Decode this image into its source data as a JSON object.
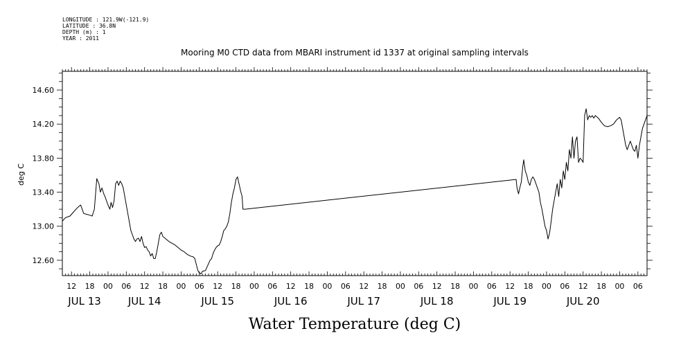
{
  "meta_lines": [
    "LONGITUDE : 121.9W(-121.9)",
    "LATITUDE : 36.8N",
    "DEPTH (m) : 1",
    "YEAR : 2011"
  ],
  "chart_data": {
    "type": "line",
    "title": "Mooring M0 CTD data from MBARI instrument id 1337 at original sampling intervals",
    "xlabel": "Water Temperature (deg C)",
    "ylabel": "deg C",
    "ylim": [
      12.42,
      14.82
    ],
    "xlim_hours": [
      9,
      201
    ],
    "y_ticks": [
      "12.60",
      "13.00",
      "13.40",
      "13.80",
      "14.20",
      "14.60"
    ],
    "x_hour_ticks": [
      "12",
      "18",
      "00",
      "06",
      "12",
      "18",
      "00",
      "06",
      "12",
      "18",
      "00",
      "06",
      "12",
      "18",
      "00",
      "06",
      "12",
      "18",
      "00",
      "06",
      "12",
      "18",
      "00",
      "06",
      "12",
      "18",
      "00",
      "06",
      "12",
      "18",
      "00",
      "06"
    ],
    "x_date_labels": [
      "JUL 13",
      "JUL 14",
      "JUL 15",
      "JUL 16",
      "JUL 17",
      "JUL 18",
      "JUL 19",
      "JUL 20"
    ],
    "grid": false,
    "series": [
      {
        "points": [
          [
            9.0,
            13.06
          ],
          [
            10.0,
            13.1
          ],
          [
            11.5,
            13.12
          ],
          [
            12.5,
            13.16
          ],
          [
            14.0,
            13.22
          ],
          [
            15.0,
            13.25
          ],
          [
            15.5,
            13.2
          ],
          [
            16.0,
            13.15
          ],
          [
            17.0,
            13.14
          ],
          [
            18.0,
            13.13
          ],
          [
            18.8,
            13.12
          ],
          [
            19.5,
            13.2
          ],
          [
            20.3,
            13.56
          ],
          [
            21.0,
            13.5
          ],
          [
            21.5,
            13.4
          ],
          [
            22.0,
            13.45
          ],
          [
            22.6,
            13.38
          ],
          [
            23.0,
            13.35
          ],
          [
            23.5,
            13.3
          ],
          [
            24.0,
            13.25
          ],
          [
            24.6,
            13.2
          ],
          [
            25.0,
            13.28
          ],
          [
            25.5,
            13.22
          ],
          [
            26.0,
            13.3
          ],
          [
            26.5,
            13.5
          ],
          [
            27.0,
            13.53
          ],
          [
            27.5,
            13.48
          ],
          [
            28.0,
            13.53
          ],
          [
            28.5,
            13.5
          ],
          [
            29.0,
            13.45
          ],
          [
            29.5,
            13.35
          ],
          [
            30.0,
            13.25
          ],
          [
            30.5,
            13.15
          ],
          [
            31.0,
            13.05
          ],
          [
            31.5,
            12.95
          ],
          [
            32.0,
            12.9
          ],
          [
            32.5,
            12.85
          ],
          [
            33.0,
            12.82
          ],
          [
            33.5,
            12.85
          ],
          [
            34.0,
            12.86
          ],
          [
            34.5,
            12.82
          ],
          [
            35.0,
            12.88
          ],
          [
            35.5,
            12.8
          ],
          [
            36.0,
            12.75
          ],
          [
            36.5,
            12.76
          ],
          [
            37.0,
            12.72
          ],
          [
            37.5,
            12.7
          ],
          [
            38.0,
            12.65
          ],
          [
            38.5,
            12.68
          ],
          [
            39.0,
            12.62
          ],
          [
            39.5,
            12.62
          ],
          [
            40.0,
            12.7
          ],
          [
            40.5,
            12.8
          ],
          [
            41.0,
            12.9
          ],
          [
            41.5,
            12.93
          ],
          [
            42.0,
            12.88
          ],
          [
            43.0,
            12.85
          ],
          [
            44.0,
            12.82
          ],
          [
            45.0,
            12.8
          ],
          [
            46.0,
            12.78
          ],
          [
            47.0,
            12.75
          ],
          [
            48.0,
            12.72
          ],
          [
            49.0,
            12.7
          ],
          [
            50.0,
            12.67
          ],
          [
            51.0,
            12.65
          ],
          [
            52.0,
            12.64
          ],
          [
            52.5,
            12.62
          ],
          [
            53.0,
            12.55
          ],
          [
            53.5,
            12.48
          ],
          [
            54.0,
            12.45
          ],
          [
            54.5,
            12.44
          ],
          [
            55.0,
            12.47
          ],
          [
            56.0,
            12.48
          ],
          [
            56.5,
            12.52
          ],
          [
            57.0,
            12.56
          ],
          [
            57.5,
            12.6
          ],
          [
            58.0,
            12.62
          ],
          [
            58.5,
            12.68
          ],
          [
            59.0,
            12.72
          ],
          [
            59.5,
            12.75
          ],
          [
            60.0,
            12.77
          ],
          [
            60.5,
            12.78
          ],
          [
            61.0,
            12.82
          ],
          [
            61.5,
            12.88
          ],
          [
            62.0,
            12.95
          ],
          [
            62.5,
            12.97
          ],
          [
            63.0,
            13.0
          ],
          [
            63.5,
            13.05
          ],
          [
            64.0,
            13.15
          ],
          [
            64.5,
            13.28
          ],
          [
            65.0,
            13.38
          ],
          [
            65.5,
            13.45
          ],
          [
            66.0,
            13.55
          ],
          [
            66.5,
            13.58
          ],
          [
            67.0,
            13.5
          ],
          [
            67.5,
            13.42
          ],
          [
            68.0,
            13.35
          ],
          [
            68.3,
            13.2
          ],
          [
            69.0,
            13.2
          ],
          [
            158.0,
            13.55
          ],
          [
            158.3,
            13.45
          ],
          [
            158.8,
            13.38
          ],
          [
            159.2,
            13.45
          ],
          [
            159.7,
            13.52
          ],
          [
            160.2,
            13.7
          ],
          [
            160.5,
            13.78
          ],
          [
            161.0,
            13.65
          ],
          [
            161.5,
            13.6
          ],
          [
            162.0,
            13.52
          ],
          [
            162.5,
            13.48
          ],
          [
            163.0,
            13.55
          ],
          [
            163.5,
            13.58
          ],
          [
            164.0,
            13.55
          ],
          [
            164.5,
            13.5
          ],
          [
            165.0,
            13.45
          ],
          [
            165.5,
            13.4
          ],
          [
            166.0,
            13.28
          ],
          [
            166.5,
            13.2
          ],
          [
            167.0,
            13.1
          ],
          [
            167.5,
            13.0
          ],
          [
            168.0,
            12.95
          ],
          [
            168.5,
            12.85
          ],
          [
            169.0,
            12.92
          ],
          [
            169.5,
            13.05
          ],
          [
            170.0,
            13.2
          ],
          [
            170.5,
            13.3
          ],
          [
            171.0,
            13.4
          ],
          [
            171.5,
            13.5
          ],
          [
            172.0,
            13.35
          ],
          [
            172.5,
            13.55
          ],
          [
            173.0,
            13.45
          ],
          [
            173.5,
            13.65
          ],
          [
            174.0,
            13.55
          ],
          [
            174.5,
            13.75
          ],
          [
            175.0,
            13.65
          ],
          [
            175.5,
            13.9
          ],
          [
            176.0,
            13.8
          ],
          [
            176.5,
            14.05
          ],
          [
            177.0,
            13.8
          ],
          [
            177.5,
            14.0
          ],
          [
            178.0,
            14.05
          ],
          [
            178.5,
            13.75
          ],
          [
            179.0,
            13.8
          ],
          [
            179.5,
            13.78
          ],
          [
            180.0,
            13.75
          ],
          [
            180.5,
            14.3
          ],
          [
            181.0,
            14.38
          ],
          [
            181.5,
            14.25
          ],
          [
            182.0,
            14.3
          ],
          [
            182.5,
            14.28
          ],
          [
            183.0,
            14.3
          ],
          [
            183.5,
            14.27
          ],
          [
            184.0,
            14.3
          ],
          [
            185.0,
            14.27
          ],
          [
            186.0,
            14.22
          ],
          [
            187.0,
            14.18
          ],
          [
            188.0,
            14.17
          ],
          [
            189.0,
            14.18
          ],
          [
            190.0,
            14.2
          ],
          [
            191.0,
            14.25
          ],
          [
            192.0,
            14.28
          ],
          [
            192.5,
            14.25
          ],
          [
            193.0,
            14.15
          ],
          [
            193.5,
            14.05
          ],
          [
            194.0,
            13.95
          ],
          [
            194.5,
            13.9
          ],
          [
            195.0,
            13.95
          ],
          [
            195.5,
            14.0
          ],
          [
            196.0,
            13.95
          ],
          [
            196.5,
            13.9
          ],
          [
            197.0,
            13.88
          ],
          [
            197.5,
            13.95
          ],
          [
            198.0,
            13.8
          ],
          [
            198.5,
            13.95
          ],
          [
            199.0,
            14.05
          ],
          [
            199.5,
            14.15
          ],
          [
            200.0,
            14.2
          ],
          [
            200.5,
            14.25
          ],
          [
            201.0,
            14.3
          ]
        ]
      }
    ]
  }
}
